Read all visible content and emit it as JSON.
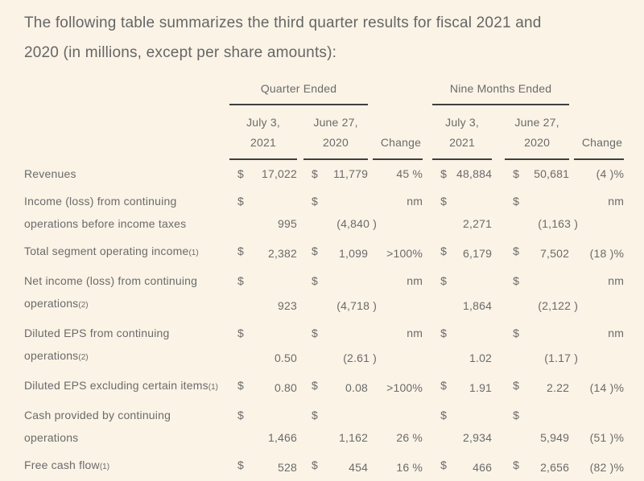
{
  "intro": {
    "line1": "The following table summarizes the third quarter results for fiscal 2021 and",
    "line2": "2020 (in millions, except per share amounts):"
  },
  "table": {
    "currency": "$",
    "header": {
      "group1": "Quarter Ended",
      "group2": "Nine Months Ended",
      "col1_line1": "July 3,",
      "col1_line2": "2021",
      "col2_line1": "June 27,",
      "col2_line2": "2020",
      "change": "Change"
    },
    "rows": [
      {
        "label_lines": [
          "Revenues"
        ],
        "marker": "",
        "values": [
          "17,022",
          "11,779",
          "45 %",
          "48,884",
          "50,681",
          "(4 )%"
        ]
      },
      {
        "label_lines": [
          "Income (loss) from continuing",
          "operations before income taxes"
        ],
        "marker": "",
        "values": [
          "995",
          "(4,840 )",
          "nm",
          "2,271",
          "(1,163 )",
          "nm"
        ]
      },
      {
        "label_lines": [
          "Total segment operating income"
        ],
        "marker": "(1)",
        "values": [
          "2,382",
          "1,099",
          ">100%",
          "6,179",
          "7,502",
          "(18 )%"
        ]
      },
      {
        "label_lines": [
          "Net income (loss) from continuing",
          "operations"
        ],
        "marker": "(2)",
        "values": [
          "923",
          "(4,718 )",
          "nm",
          "1,864",
          "(2,122 )",
          "nm"
        ]
      },
      {
        "label_lines": [
          "Diluted EPS from continuing",
          "operations"
        ],
        "marker": "(2)",
        "values": [
          "0.50",
          "(2.61 )",
          "nm",
          "1.02",
          "(1.17 )",
          "nm"
        ]
      },
      {
        "label_lines": [
          "Diluted EPS excluding certain items"
        ],
        "marker": "(1)",
        "values": [
          "0.80",
          "0.08",
          ">100%",
          "1.91",
          "2.22",
          "(14 )%"
        ]
      },
      {
        "label_lines": [
          "Cash provided by continuing",
          "operations"
        ],
        "marker": "",
        "values": [
          "1,466",
          "1,162",
          "26 %",
          "2,934",
          "5,949",
          "(51 )%"
        ]
      },
      {
        "label_lines": [
          "Free cash flow"
        ],
        "marker": "(1)",
        "values": [
          "528",
          "454",
          "16 %",
          "466",
          "2,656",
          "(82 )%"
        ]
      }
    ]
  }
}
